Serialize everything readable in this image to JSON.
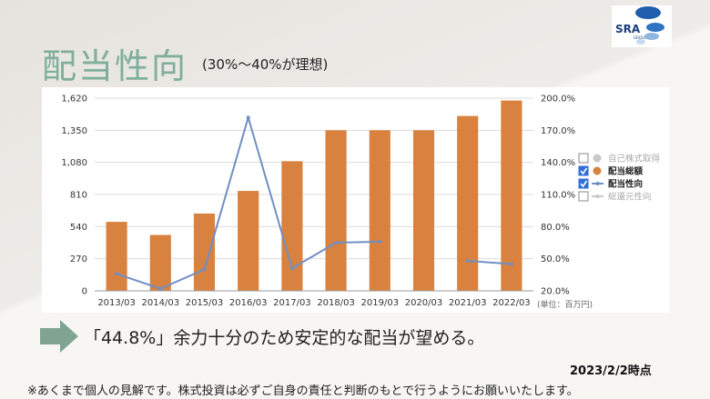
{
  "page": {
    "title": "配当性向",
    "subtitle": "(30%〜40%が理想)",
    "logo_text": "SRA",
    "logo_subtext": "GROUP",
    "message": "「44.8%」余力十分のため安定的な配当が望める。",
    "date_stamp": "2023/2/2時点",
    "disclaimer": "※あくまで個人の見解です。株式投資は必ずご自身の責任と判断のもとで行うようにお願いいたします。"
  },
  "colors": {
    "title": "#7fae9a",
    "bar": "#d9823f",
    "line": "#6f8fc4",
    "grid": "#dcdcdc",
    "arrow": "#7fa592",
    "logo_dark": "#1f5fae",
    "logo_light": "#8fb6df"
  },
  "chart_data": {
    "type": "bar+line",
    "categories": [
      "2013/03",
      "2014/03",
      "2015/03",
      "2016/03",
      "2017/03",
      "2018/03",
      "2019/03",
      "2020/03",
      "2021/03",
      "2022/03"
    ],
    "series": [
      {
        "name": "配当総額",
        "type": "bar",
        "axis": "left",
        "values": [
          580,
          470,
          650,
          840,
          1090,
          1350,
          1350,
          1350,
          1470,
          1600
        ]
      },
      {
        "name": "配当性向",
        "type": "line",
        "axis": "right",
        "values": [
          36.0,
          22.0,
          40.0,
          182.0,
          41.0,
          65.0,
          66.0,
          null,
          48.0,
          45.0
        ]
      }
    ],
    "y_left": {
      "min": 0,
      "max": 1620,
      "ticks": [
        "0",
        "270",
        "540",
        "810",
        "1,080",
        "1,350",
        "1,620"
      ]
    },
    "y_right": {
      "min": 20,
      "max": 200,
      "ticks": [
        "20.0%",
        "50.0%",
        "80.0%",
        "110.0%",
        "140.0%",
        "170.0%",
        "200.0%"
      ]
    },
    "legend": [
      {
        "label": "自己株式取得",
        "checked": false,
        "marker": "circle",
        "active": false
      },
      {
        "label": "配当総額",
        "checked": true,
        "marker": "circle",
        "active": true
      },
      {
        "label": "配当性向",
        "checked": true,
        "marker": "line",
        "active": true
      },
      {
        "label": "総還元性向",
        "checked": false,
        "marker": "line",
        "active": false
      }
    ],
    "legend_position": "right",
    "unit_note": "(単位：百万円)",
    "grid": true
  }
}
